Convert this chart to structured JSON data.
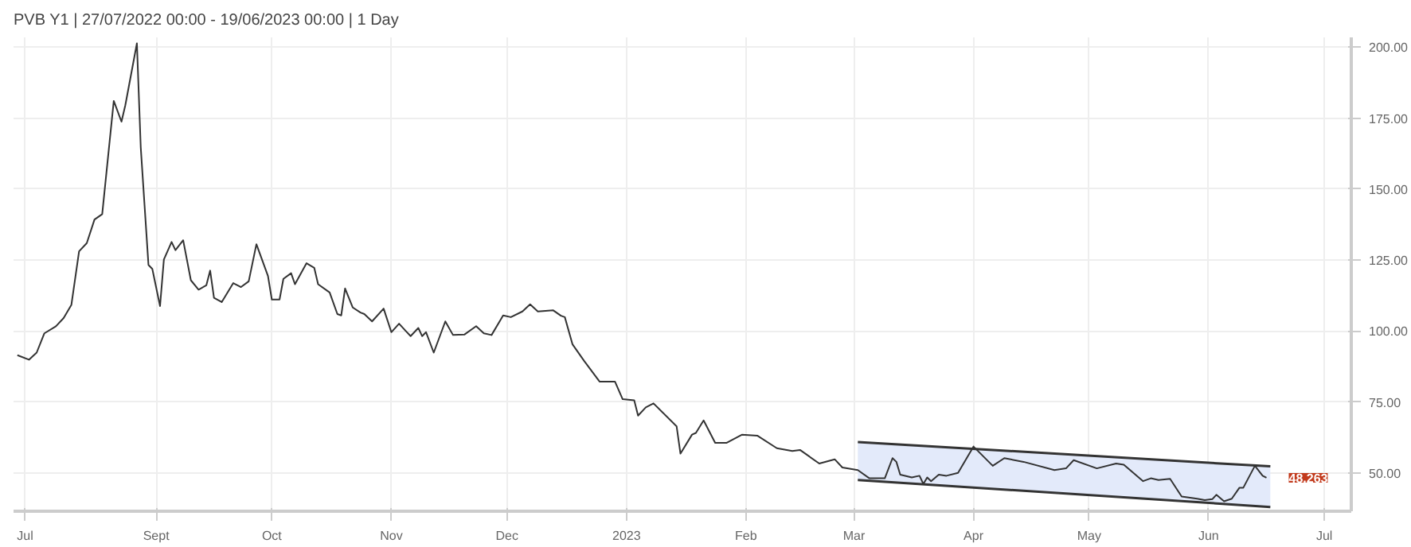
{
  "chart_data": {
    "type": "line",
    "title": "PVB Y1 | 27/07/2022 00:00 - 19/06/2023 00:00 | 1 Day",
    "xlim": [
      "2022-07-26",
      "2023-07-08"
    ],
    "ylim": [
      36.5,
      203.5
    ],
    "xticks": [
      {
        "value": "2022-07-29",
        "label": "Jul"
      },
      {
        "value": "2022-09-01",
        "label": "Sept"
      },
      {
        "value": "2022-10-01",
        "label": "Oct"
      },
      {
        "value": "2022-11-01",
        "label": "Nov"
      },
      {
        "value": "2022-12-01",
        "label": "Dec"
      },
      {
        "value": "2023-01-01",
        "label": "2023"
      },
      {
        "value": "2023-02-01",
        "label": "Feb"
      },
      {
        "value": "2023-03-01",
        "label": "Mar"
      },
      {
        "value": "2023-04-01",
        "label": "Apr"
      },
      {
        "value": "2023-05-01",
        "label": "May"
      },
      {
        "value": "2023-06-01",
        "label": "Jun"
      },
      {
        "value": "2023-07-01",
        "label": "Jul"
      }
    ],
    "yticks": [
      {
        "value": 50,
        "label": "50.00"
      },
      {
        "value": 75,
        "label": "75.00"
      },
      {
        "value": 100,
        "label": "100.00"
      },
      {
        "value": 125,
        "label": "125.00"
      },
      {
        "value": 150,
        "label": "150.00"
      },
      {
        "value": 175,
        "label": "175.00"
      },
      {
        "value": 200,
        "label": "200.00"
      }
    ],
    "grid": true,
    "marker": "none",
    "line_style": "solid",
    "series": [
      {
        "color": "#333333",
        "x": [
          "2022-07-27",
          "2022-07-30",
          "2022-08-01",
          "2022-08-03",
          "2022-08-06",
          "2022-08-08",
          "2022-08-10",
          "2022-08-12",
          "2022-08-14",
          "2022-08-16",
          "2022-08-18",
          "2022-08-21",
          "2022-08-23",
          "2022-08-24",
          "2022-08-27",
          "2022-08-28",
          "2022-08-30",
          "2022-08-31",
          "2022-09-02",
          "2022-09-03",
          "2022-09-05",
          "2022-09-06",
          "2022-09-08",
          "2022-09-10",
          "2022-09-12",
          "2022-09-14",
          "2022-09-15",
          "2022-09-16",
          "2022-09-18",
          "2022-09-21",
          "2022-09-23",
          "2022-09-25",
          "2022-09-27",
          "2022-09-30",
          "2022-10-01",
          "2022-10-03",
          "2022-10-04",
          "2022-10-06",
          "2022-10-07",
          "2022-10-10",
          "2022-10-12",
          "2022-10-13",
          "2022-10-16",
          "2022-10-18",
          "2022-10-19",
          "2022-10-20",
          "2022-10-22",
          "2022-10-24",
          "2022-10-25",
          "2022-10-27",
          "2022-10-30",
          "2022-11-01",
          "2022-11-03",
          "2022-11-04",
          "2022-11-06",
          "2022-11-08",
          "2022-11-09",
          "2022-11-10",
          "2022-11-12",
          "2022-11-15",
          "2022-11-17",
          "2022-11-20",
          "2022-11-23",
          "2022-11-25",
          "2022-11-27",
          "2022-11-30",
          "2022-12-02",
          "2022-12-05",
          "2022-12-07",
          "2022-12-09",
          "2022-12-13",
          "2022-12-15",
          "2022-12-16",
          "2022-12-18",
          "2022-12-21",
          "2022-12-25",
          "2022-12-29",
          "2022-12-31",
          "2023-01-03",
          "2023-01-04",
          "2023-01-06",
          "2023-01-08",
          "2023-01-14",
          "2023-01-15",
          "2023-01-18",
          "2023-01-19",
          "2023-01-21",
          "2023-01-24",
          "2023-01-27",
          "2023-01-31",
          "2023-02-04",
          "2023-02-09",
          "2023-02-13",
          "2023-02-15",
          "2023-02-20",
          "2023-02-24",
          "2023-02-26",
          "2023-03-02",
          "2023-03-05",
          "2023-03-09",
          "2023-03-11",
          "2023-03-12",
          "2023-03-13",
          "2023-03-16",
          "2023-03-18",
          "2023-03-19",
          "2023-03-20",
          "2023-03-21",
          "2023-03-23",
          "2023-03-25",
          "2023-03-28",
          "2023-04-01",
          "2023-04-06",
          "2023-04-09",
          "2023-04-14",
          "2023-04-22",
          "2023-04-25",
          "2023-04-27",
          "2023-05-03",
          "2023-05-08",
          "2023-05-10",
          "2023-05-15",
          "2023-05-17",
          "2023-05-19",
          "2023-05-22",
          "2023-05-25",
          "2023-05-29",
          "2023-05-31",
          "2023-06-02",
          "2023-06-03",
          "2023-06-05",
          "2023-06-07",
          "2023-06-09",
          "2023-06-10",
          "2023-06-13",
          "2023-06-15",
          "2023-06-16"
        ],
        "values": [
          91.5,
          89.9,
          92.4,
          99.2,
          101.7,
          104.6,
          109.2,
          128.1,
          131.0,
          139.3,
          141.2,
          181.1,
          173.8,
          179.6,
          201.4,
          164.7,
          123.3,
          121.9,
          108.8,
          125.2,
          131.4,
          128.5,
          132.0,
          117.9,
          114.6,
          116.1,
          121.3,
          111.7,
          110.2,
          116.9,
          115.5,
          117.5,
          130.6,
          119.4,
          111.1,
          111.1,
          118.4,
          120.4,
          116.5,
          123.9,
          122.3,
          116.5,
          113.6,
          106.0,
          105.5,
          115.0,
          108.3,
          106.5,
          106.0,
          103.4,
          107.9,
          99.6,
          102.6,
          101.1,
          98.2,
          101.1,
          98.2,
          99.6,
          92.4,
          103.4,
          98.6,
          98.8,
          101.7,
          99.2,
          98.6,
          105.5,
          104.9,
          106.9,
          109.4,
          106.9,
          107.3,
          105.4,
          104.9,
          95.3,
          89.5,
          82.2,
          82.2,
          76.0,
          75.6,
          70.2,
          73.1,
          74.5,
          66.4,
          56.8,
          63.5,
          64.1,
          68.5,
          60.6,
          60.6,
          63.5,
          63.1,
          58.7,
          57.7,
          58.1,
          53.3,
          54.8,
          51.9,
          51.0,
          48.1,
          48.1,
          55.2,
          53.9,
          49.4,
          48.4,
          49.0,
          46.1,
          48.4,
          47.1,
          49.4,
          49.0,
          50.0,
          59.3,
          52.5,
          55.2,
          53.9,
          51.0,
          51.6,
          54.5,
          51.6,
          53.3,
          52.9,
          47.1,
          48.1,
          47.5,
          47.9,
          41.7,
          40.9,
          40.4,
          40.8,
          42.3,
          40.0,
          40.9,
          44.8,
          44.8,
          52.5,
          49.0,
          48.3
        ]
      },
      {
        "type": "line",
        "color": "#333333",
        "x": [
          "2023-03-02",
          "2023-06-17"
        ],
        "values": [
          60.9,
          52.3
        ],
        "lower": [
          47.5,
          38.0
        ],
        "upper": [
          60.9,
          52.3
        ]
      },
      {
        "type": "line",
        "color": "#333333",
        "x": [
          "2023-03-02",
          "2023-06-17"
        ],
        "values": [
          47.5,
          38.0
        ]
      }
    ],
    "annotations": [
      {
        "text": "48.263",
        "x": "2023-06-16",
        "y": 48.3
      }
    ]
  }
}
